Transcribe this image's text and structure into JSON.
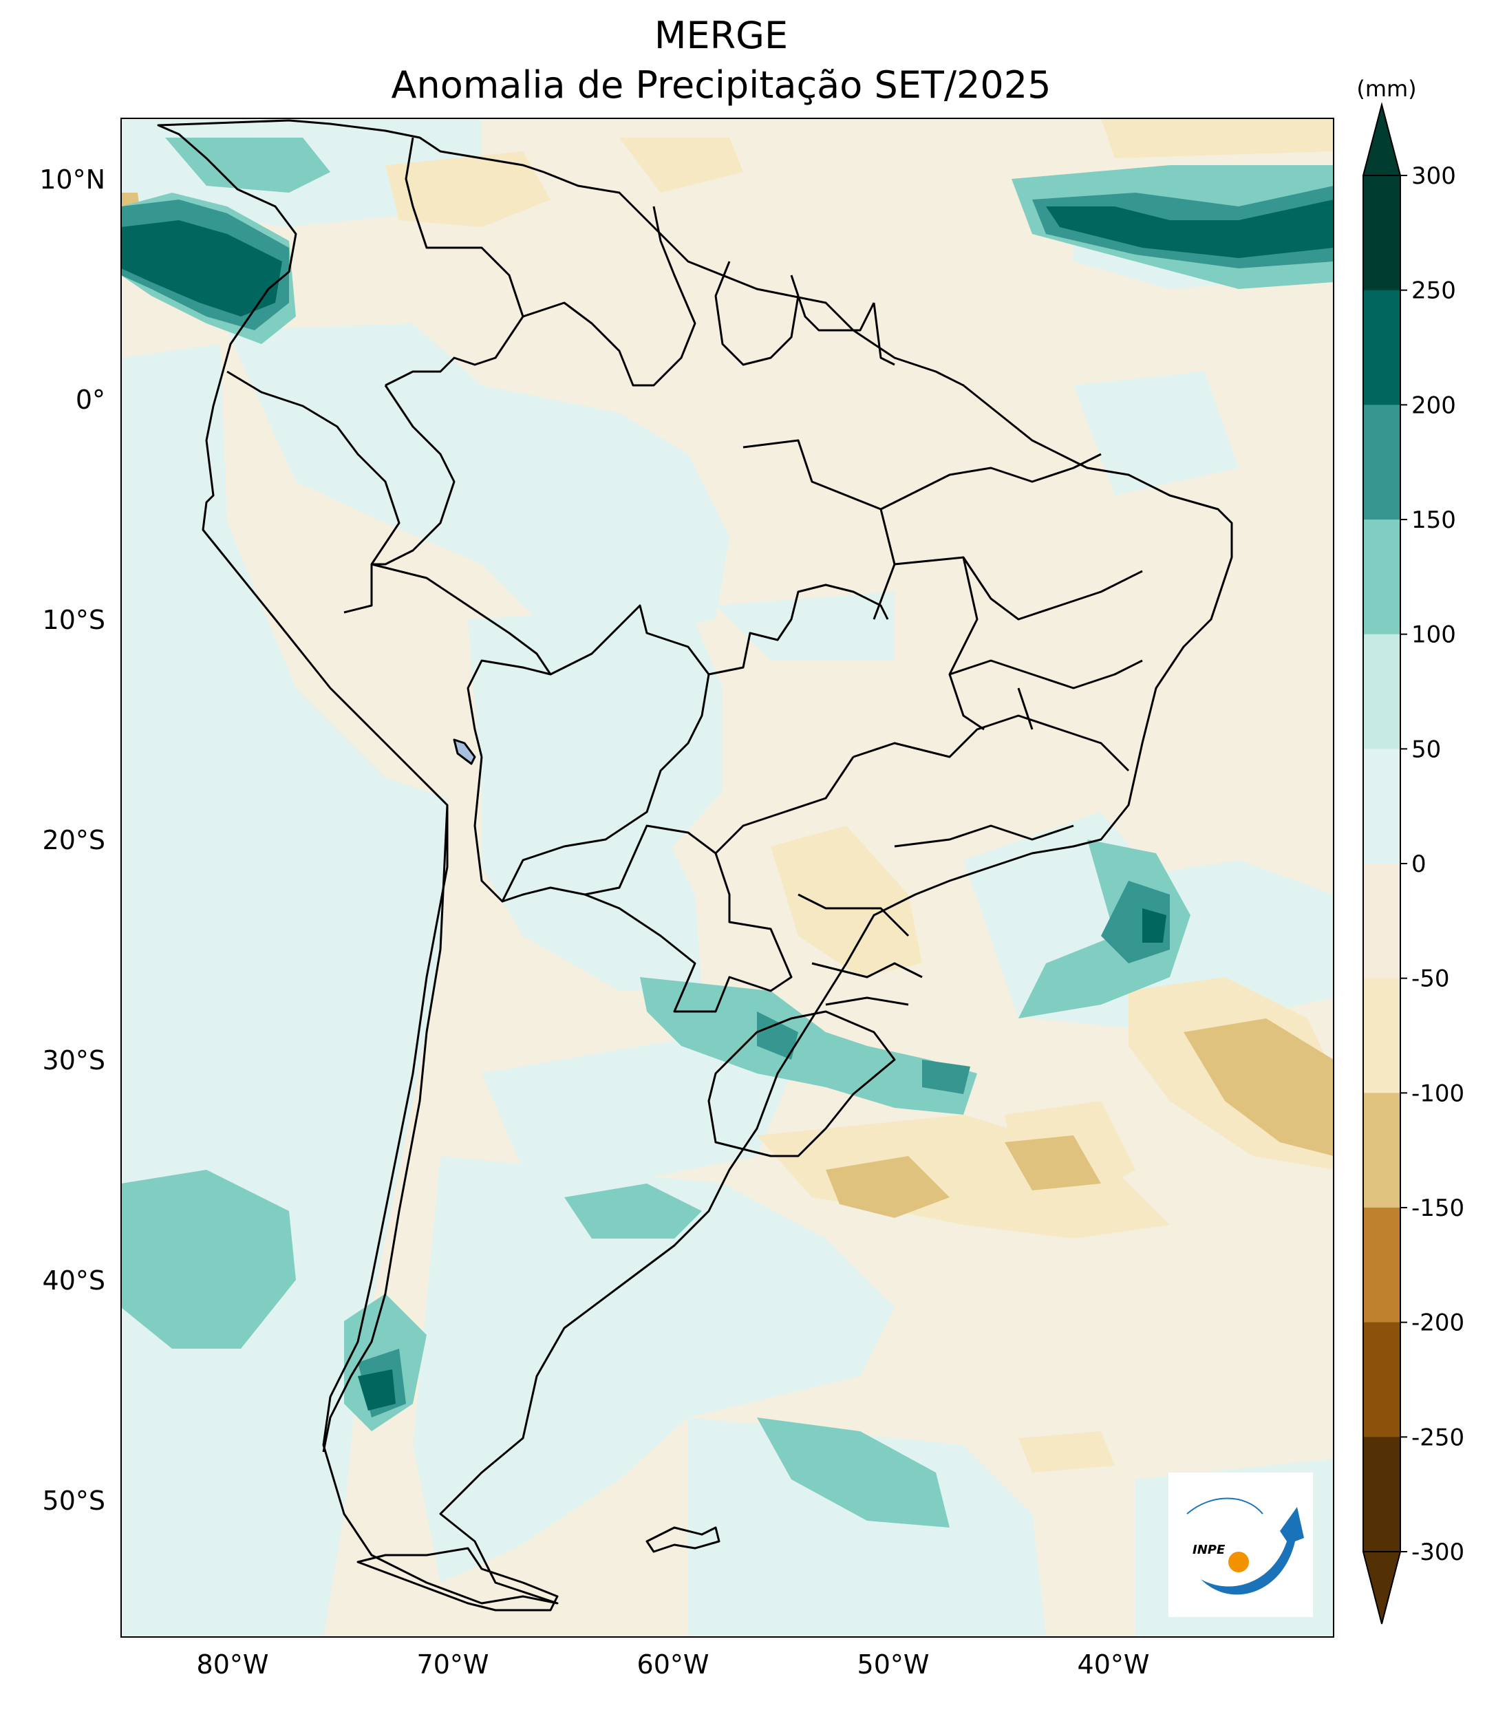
{
  "title_line1": "MERGE",
  "title_line2": "Anomalia de Precipitação SET/2025",
  "colorbar": {
    "unit": "(mm)",
    "ticks": [
      "300",
      "250",
      "200",
      "150",
      "100",
      "50",
      "0",
      "-50",
      "-100",
      "-150",
      "-200",
      "-250",
      "-300"
    ],
    "colors_top_to_bottom": [
      "#01665e",
      "#35978f",
      "#80cdc1",
      "#c7eae5",
      "#e0f3f0",
      "#f5ecdb",
      "#f6e8c3",
      "#dfc27d",
      "#bf812d",
      "#8c510a",
      "#543005"
    ],
    "extend_top_color": "#003c30",
    "extend_bottom_color": "#543005"
  },
  "axes": {
    "lat_labels": [
      "10°N",
      "0°",
      "10°S",
      "20°S",
      "30°S",
      "40°S",
      "50°S"
    ],
    "lon_labels": [
      "80°W",
      "70°W",
      "60°W",
      "50°W",
      "40°W"
    ]
  },
  "logo": {
    "text": "INPE"
  }
}
